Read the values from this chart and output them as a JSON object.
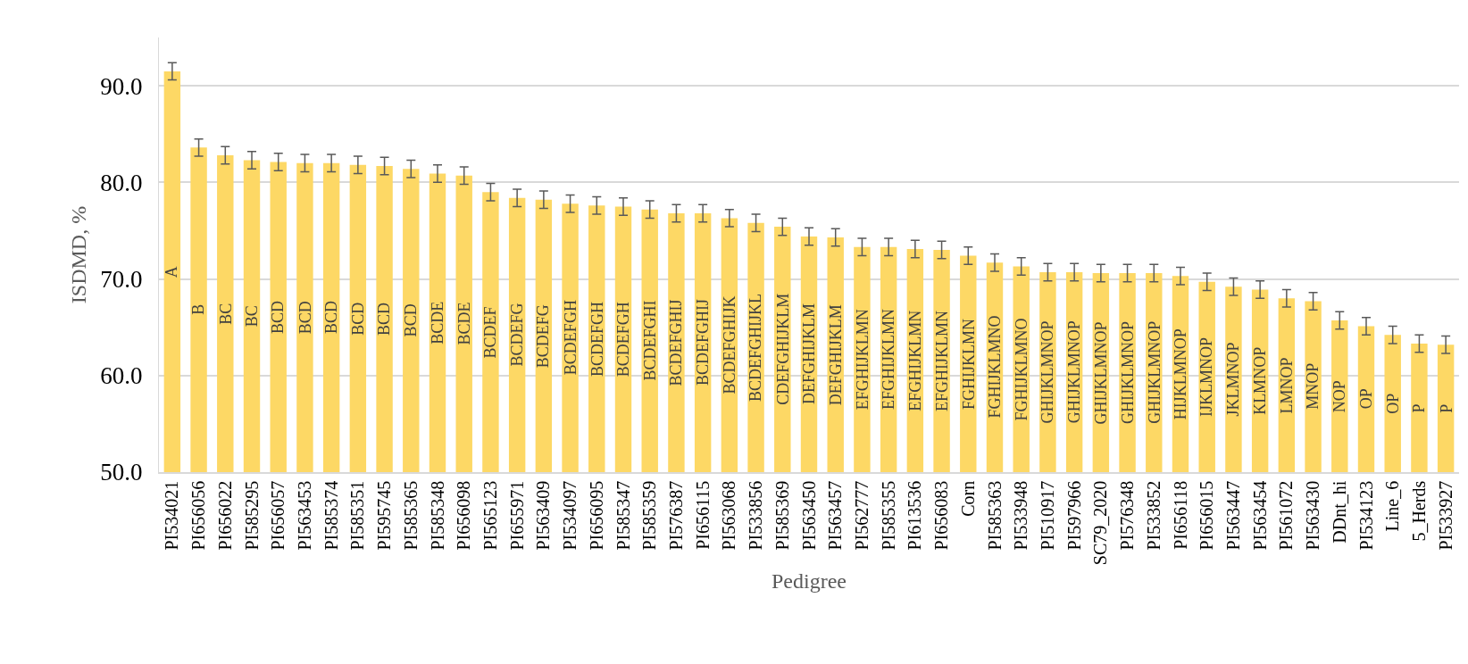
{
  "chart_data": {
    "type": "bar",
    "xlabel": "Pedigree",
    "ylabel": "ISDMD, %",
    "categories": [
      "PI534021",
      "PI656056",
      "PI656022",
      "PI585295",
      "PI656057",
      "PI563453",
      "PI585374",
      "PI585351",
      "PI595745",
      "PI585365",
      "PI585348",
      "PI656098",
      "PI565123",
      "PI655971",
      "PI563409",
      "PI534097",
      "PI656095",
      "PI585347",
      "PI585359",
      "PI576387",
      "PI656115",
      "PI563068",
      "PI533856",
      "PI585369",
      "PI563450",
      "PI563457",
      "PI562777",
      "PI585355",
      "PI613536",
      "PI656083",
      "Corn",
      "PI585363",
      "PI533948",
      "PI510917",
      "PI597966",
      "SC79_2020",
      "PI576348",
      "PI533852",
      "PI656118",
      "PI656015",
      "PI563447",
      "PI563454",
      "PI561072",
      "PI563430",
      "DDnt_hi",
      "PI534123",
      "Line_6",
      "5_Herds",
      "PI533927"
    ],
    "values": [
      91.5,
      83.6,
      82.8,
      82.3,
      82.1,
      82.0,
      82.0,
      81.8,
      81.7,
      81.4,
      80.9,
      80.7,
      79.0,
      78.4,
      78.2,
      77.8,
      77.6,
      77.5,
      77.2,
      76.8,
      76.8,
      76.3,
      75.8,
      75.4,
      74.4,
      74.3,
      73.3,
      73.3,
      73.1,
      73.0,
      72.4,
      71.7,
      71.3,
      70.7,
      70.7,
      70.6,
      70.6,
      70.6,
      70.3,
      69.7,
      69.2,
      68.9,
      68.0,
      67.7,
      65.7,
      65.1,
      64.2,
      63.3,
      63.2
    ],
    "errors": [
      0.9,
      0.9,
      0.9,
      0.9,
      0.9,
      0.9,
      0.9,
      0.9,
      0.9,
      0.9,
      0.9,
      0.9,
      0.9,
      0.9,
      0.9,
      0.9,
      0.9,
      0.9,
      0.9,
      0.9,
      0.9,
      0.9,
      0.9,
      0.9,
      0.9,
      0.9,
      0.9,
      0.9,
      0.9,
      0.9,
      0.9,
      0.9,
      0.9,
      0.9,
      0.9,
      0.9,
      0.9,
      0.9,
      0.9,
      0.9,
      0.9,
      0.9,
      0.9,
      0.9,
      0.9,
      0.9,
      0.9,
      0.9,
      0.9
    ],
    "value_labels": [
      "A",
      "B",
      "BC",
      "BC",
      "BCD",
      "BCD",
      "BCD",
      "BCD",
      "BCD",
      "BCD",
      "BCDE",
      "BCDE",
      "BCDEF",
      "BCDEFG",
      "BCDEFG",
      "BCDEFGH",
      "BCDEFGH",
      "BCDEFGH",
      "BCDEFGHI",
      "BCDEFGHIJ",
      "BCDEFGHIJ",
      "BCDEFGHIJK",
      "BCDEFGHIJKL",
      "CDEFGHIJKLM",
      "DEFGHIJKLM",
      "DEFGHIJKLM",
      "EFGHIJKLMN",
      "EFGHIJKLMN",
      "EFGHIJKLMN",
      "EFGHIJKLMN",
      "FGHIJKLMN",
      "FGHIJKLMNO",
      "FGHIJKLMNO",
      "GHIJKLMNOP",
      "GHIJKLMNOP",
      "GHIJKLMNOP",
      "GHIJKLMNOP",
      "GHIJKLMNOP",
      "HIJKLMNOP",
      "IJKLMNOP",
      "JKLMNOP",
      "KLMNOP",
      "LMNOP",
      "MNOP",
      "NOP",
      "OP",
      "OP",
      "P",
      "P"
    ],
    "color": "#fdd865",
    "ylim": [
      50,
      95
    ],
    "yticks": [
      {
        "value": 50,
        "label": "50.0"
      },
      {
        "value": 60,
        "label": "60.0"
      },
      {
        "value": 70,
        "label": "70.0"
      },
      {
        "value": 80,
        "label": "80.0"
      },
      {
        "value": 90,
        "label": "90.0"
      }
    ],
    "grid": "y"
  }
}
